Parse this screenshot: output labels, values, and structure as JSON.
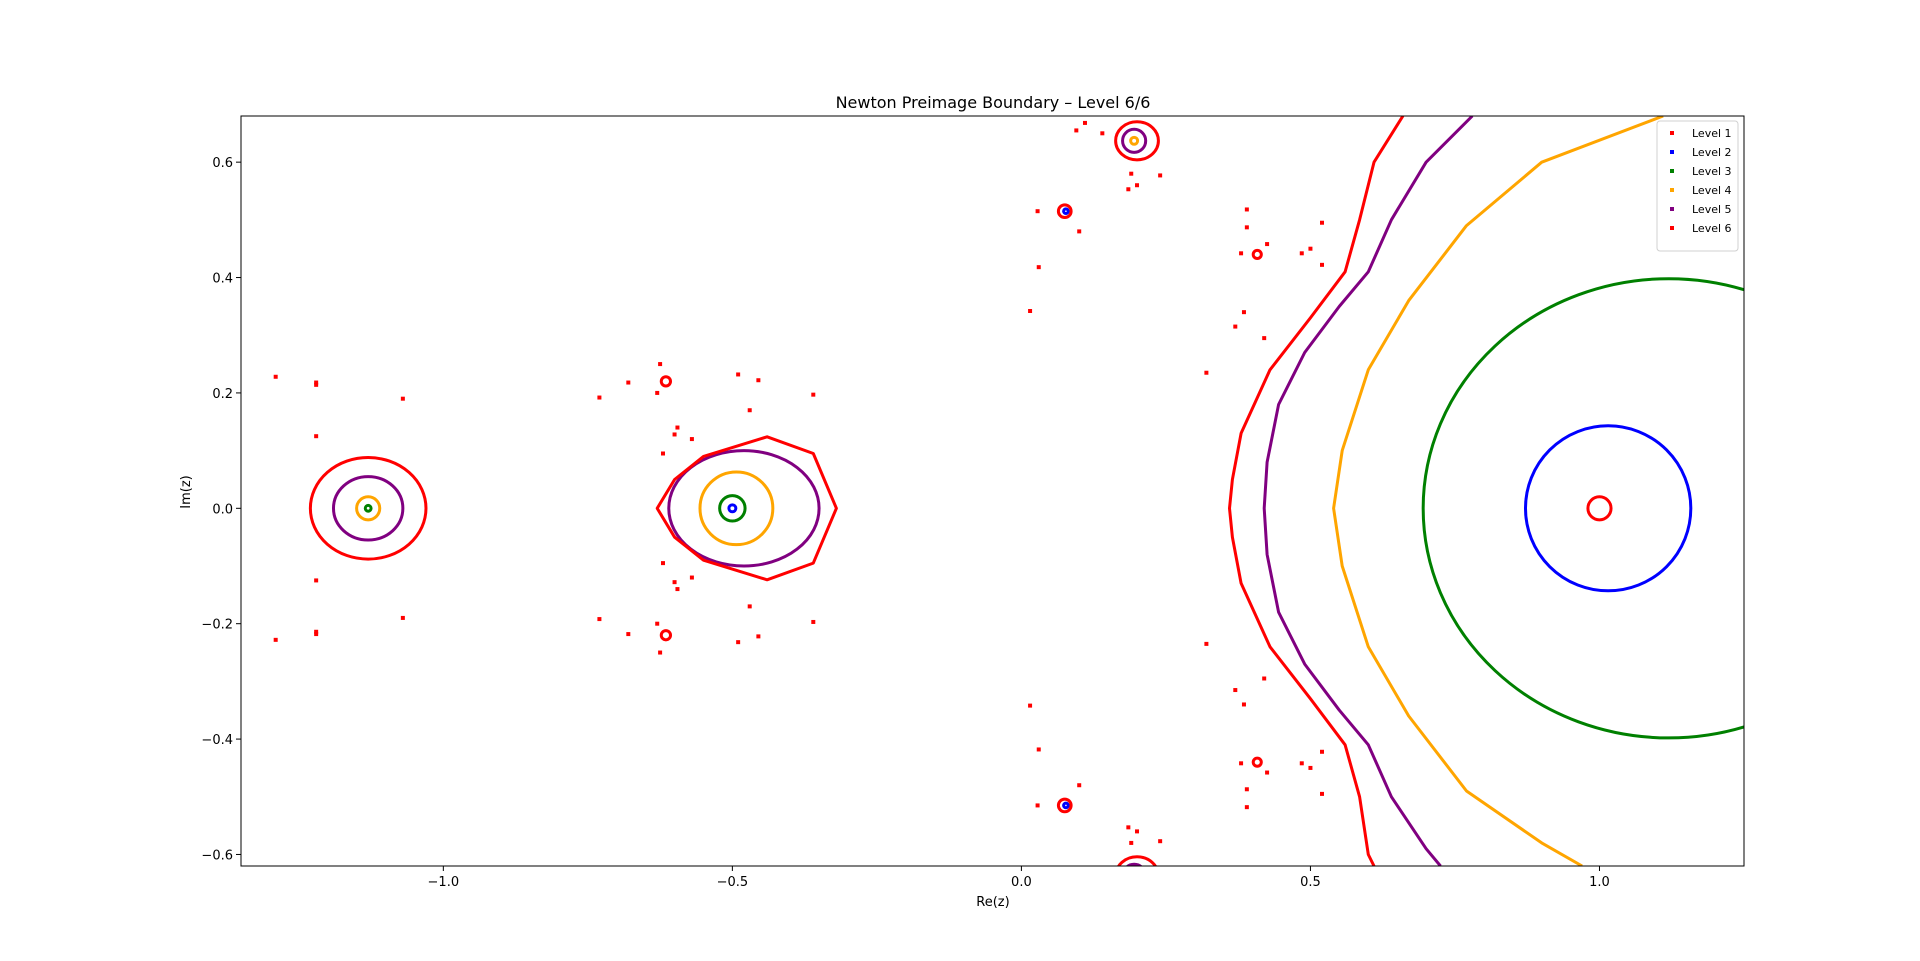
{
  "chart_data": {
    "type": "scatter",
    "title": "Newton Preimage Boundary – Level 6/6",
    "xlabel": "Re(z)",
    "ylabel": "Im(z)",
    "xlim": [
      -1.35,
      1.25
    ],
    "ylim": [
      -0.62,
      0.68
    ],
    "xticks": [
      -1.0,
      -0.5,
      0.0,
      0.5,
      1.0
    ],
    "xtick_labels": [
      "−1.0",
      "−0.5",
      "0.0",
      "0.5",
      "1.0"
    ],
    "yticks": [
      -0.6,
      -0.4,
      -0.2,
      0.0,
      0.2,
      0.4,
      0.6
    ],
    "ytick_labels": [
      "−0.6",
      "−0.4",
      "−0.2",
      "0.0",
      "0.2",
      "0.4",
      "0.6"
    ],
    "grid": false,
    "legend_position": "top-right",
    "series": [
      {
        "name": "Level 1",
        "color": "#ff0000",
        "curves": [
          {
            "kind": "ellipse",
            "center": [
              1.0,
              0.0
            ],
            "rx": 0.02,
            "ry": 0.02
          }
        ]
      },
      {
        "name": "Level 2",
        "color": "#0000ff",
        "curves": [
          {
            "kind": "ellipse",
            "center": [
              1.015,
              0.0
            ],
            "rx": 0.143,
            "ry": 0.143
          },
          {
            "kind": "ellipse",
            "center": [
              -0.5,
              0.0
            ],
            "rx": 0.006,
            "ry": 0.006
          },
          {
            "kind": "ellipse",
            "center": [
              0.077,
              0.515
            ],
            "rx": 0.004,
            "ry": 0.004
          },
          {
            "kind": "ellipse",
            "center": [
              0.077,
              -0.515
            ],
            "rx": 0.004,
            "ry": 0.004
          }
        ]
      },
      {
        "name": "Level 3",
        "color": "#008000",
        "curves": [
          {
            "kind": "ellipse",
            "center": [
              1.12,
              0.0
            ],
            "rx": 0.425,
            "ry": 0.398
          },
          {
            "kind": "ellipse",
            "center": [
              -0.5,
              0.0
            ],
            "rx": 0.022,
            "ry": 0.022
          },
          {
            "kind": "ellipse",
            "center": [
              -1.13,
              0.0
            ],
            "rx": 0.005,
            "ry": 0.005
          }
        ]
      },
      {
        "name": "Level 4",
        "color": "#ffa500",
        "curves": [
          {
            "kind": "path",
            "points": [
              [
                1.11,
                0.68
              ],
              [
                0.9,
                0.6
              ],
              [
                0.77,
                0.49
              ],
              [
                0.67,
                0.36
              ],
              [
                0.6,
                0.24
              ],
              [
                0.555,
                0.1
              ],
              [
                0.54,
                0.0
              ],
              [
                0.555,
                -0.1
              ],
              [
                0.6,
                -0.24
              ],
              [
                0.67,
                -0.36
              ],
              [
                0.77,
                -0.49
              ],
              [
                0.9,
                -0.58
              ],
              [
                0.97,
                -0.62
              ]
            ]
          },
          {
            "kind": "ellipse",
            "center": [
              -0.493,
              0.0
            ],
            "rx": 0.063,
            "ry": 0.063
          },
          {
            "kind": "ellipse",
            "center": [
              -1.13,
              0.0
            ],
            "rx": 0.02,
            "ry": 0.02
          },
          {
            "kind": "ellipse",
            "center": [
              0.195,
              0.637
            ],
            "rx": 0.006,
            "ry": 0.006
          }
        ]
      },
      {
        "name": "Level 5",
        "color": "#800080",
        "curves": [
          {
            "kind": "path",
            "points": [
              [
                0.78,
                0.68
              ],
              [
                0.7,
                0.6
              ],
              [
                0.64,
                0.5
              ],
              [
                0.6,
                0.41
              ],
              [
                0.55,
                0.35
              ],
              [
                0.49,
                0.27
              ],
              [
                0.445,
                0.18
              ],
              [
                0.425,
                0.08
              ],
              [
                0.42,
                0.0
              ],
              [
                0.425,
                -0.08
              ],
              [
                0.445,
                -0.18
              ],
              [
                0.49,
                -0.27
              ],
              [
                0.55,
                -0.35
              ],
              [
                0.6,
                -0.41
              ],
              [
                0.64,
                -0.5
              ],
              [
                0.7,
                -0.59
              ],
              [
                0.725,
                -0.62
              ]
            ]
          },
          {
            "kind": "ellipse",
            "center": [
              -0.48,
              0.0
            ],
            "rx": 0.13,
            "ry": 0.1
          },
          {
            "kind": "ellipse",
            "center": [
              -1.13,
              0.0
            ],
            "rx": 0.06,
            "ry": 0.055
          },
          {
            "kind": "ellipse",
            "center": [
              0.195,
              0.637
            ],
            "rx": 0.02,
            "ry": 0.02
          },
          {
            "kind": "ellipse",
            "center": [
              0.195,
              -0.637
            ],
            "rx": 0.02,
            "ry": 0.02
          }
        ]
      },
      {
        "name": "Level 6",
        "color": "#ff0000",
        "curves": [
          {
            "kind": "path",
            "points": [
              [
                0.66,
                0.68
              ],
              [
                0.61,
                0.6
              ],
              [
                0.585,
                0.5
              ],
              [
                0.56,
                0.41
              ],
              [
                0.5,
                0.33
              ],
              [
                0.43,
                0.24
              ],
              [
                0.38,
                0.13
              ],
              [
                0.365,
                0.05
              ],
              [
                0.36,
                0.0
              ],
              [
                0.365,
                -0.05
              ],
              [
                0.38,
                -0.13
              ],
              [
                0.43,
                -0.24
              ],
              [
                0.5,
                -0.33
              ],
              [
                0.56,
                -0.41
              ],
              [
                0.585,
                -0.5
              ],
              [
                0.6,
                -0.6
              ],
              [
                0.61,
                -0.62
              ]
            ]
          },
          {
            "kind": "path",
            "points": [
              [
                -0.55,
                0.09
              ],
              [
                -0.44,
                0.124
              ],
              [
                -0.36,
                0.095
              ],
              [
                -0.32,
                0.0
              ],
              [
                -0.36,
                -0.095
              ],
              [
                -0.44,
                -0.124
              ],
              [
                -0.55,
                -0.09
              ],
              [
                -0.6,
                -0.05
              ],
              [
                -0.63,
                0.0
              ],
              [
                -0.6,
                0.05
              ],
              [
                -0.55,
                0.09
              ]
            ],
            "closed": true
          },
          {
            "kind": "ellipse",
            "center": [
              -1.13,
              0.0
            ],
            "rx": 0.1,
            "ry": 0.088
          },
          {
            "kind": "ellipse",
            "center": [
              0.2,
              0.637
            ],
            "rx": 0.037,
            "ry": 0.033
          },
          {
            "kind": "ellipse",
            "center": [
              0.2,
              -0.637
            ],
            "rx": 0.037,
            "ry": 0.033
          },
          {
            "kind": "ellipse",
            "center": [
              0.075,
              0.515
            ],
            "rx": 0.011,
            "ry": 0.011
          },
          {
            "kind": "ellipse",
            "center": [
              0.075,
              -0.515
            ],
            "rx": 0.011,
            "ry": 0.011
          },
          {
            "kind": "ellipse",
            "center": [
              -0.615,
              0.22
            ],
            "rx": 0.008,
            "ry": 0.008
          },
          {
            "kind": "ellipse",
            "center": [
              -0.615,
              -0.22
            ],
            "rx": 0.008,
            "ry": 0.008
          },
          {
            "kind": "ellipse",
            "center": [
              0.408,
              0.44
            ],
            "rx": 0.007,
            "ry": 0.007
          },
          {
            "kind": "ellipse",
            "center": [
              0.408,
              -0.44
            ],
            "rx": 0.007,
            "ry": 0.007
          }
        ],
        "points": [
          [
            -1.22,
            0.218
          ],
          [
            -1.22,
            -0.218
          ],
          [
            -1.22,
            0.214
          ],
          [
            -1.22,
            -0.214
          ],
          [
            -1.29,
            0.228
          ],
          [
            -1.29,
            -0.228
          ],
          [
            -1.22,
            0.125
          ],
          [
            -1.22,
            -0.125
          ],
          [
            -1.07,
            0.19
          ],
          [
            -1.07,
            -0.19
          ],
          [
            -0.73,
            0.192
          ],
          [
            -0.73,
            -0.192
          ],
          [
            -0.68,
            0.218
          ],
          [
            -0.68,
            -0.218
          ],
          [
            -0.63,
            0.2
          ],
          [
            -0.63,
            -0.2
          ],
          [
            -0.625,
            0.25
          ],
          [
            -0.625,
            -0.25
          ],
          [
            -0.6,
            0.128
          ],
          [
            -0.6,
            -0.128
          ],
          [
            -0.595,
            0.14
          ],
          [
            -0.595,
            -0.14
          ],
          [
            -0.62,
            0.095
          ],
          [
            -0.62,
            -0.095
          ],
          [
            -0.57,
            0.12
          ],
          [
            -0.57,
            -0.12
          ],
          [
            -0.49,
            0.232
          ],
          [
            -0.49,
            -0.232
          ],
          [
            -0.455,
            0.222
          ],
          [
            -0.455,
            -0.222
          ],
          [
            -0.47,
            0.17
          ],
          [
            -0.47,
            -0.17
          ],
          [
            -0.36,
            0.197
          ],
          [
            -0.36,
            -0.197
          ],
          [
            0.015,
            0.342
          ],
          [
            0.015,
            -0.342
          ],
          [
            0.03,
            0.418
          ],
          [
            0.03,
            -0.418
          ],
          [
            0.028,
            0.515
          ],
          [
            0.028,
            -0.515
          ],
          [
            0.1,
            0.48
          ],
          [
            0.1,
            -0.48
          ],
          [
            0.11,
            0.668
          ],
          [
            0.11,
            -0.668
          ],
          [
            0.095,
            0.655
          ],
          [
            0.095,
            -0.655
          ],
          [
            0.14,
            0.65
          ],
          [
            0.14,
            -0.65
          ],
          [
            0.185,
            0.553
          ],
          [
            0.185,
            -0.553
          ],
          [
            0.2,
            0.56
          ],
          [
            0.2,
            -0.56
          ],
          [
            0.19,
            0.58
          ],
          [
            0.19,
            -0.58
          ],
          [
            0.24,
            0.577
          ],
          [
            0.24,
            -0.577
          ],
          [
            0.32,
            0.235
          ],
          [
            0.32,
            -0.235
          ],
          [
            0.37,
            0.315
          ],
          [
            0.37,
            -0.315
          ],
          [
            0.385,
            0.34
          ],
          [
            0.385,
            -0.34
          ],
          [
            0.38,
            0.442
          ],
          [
            0.38,
            -0.442
          ],
          [
            0.39,
            0.487
          ],
          [
            0.39,
            -0.487
          ],
          [
            0.39,
            0.518
          ],
          [
            0.39,
            -0.518
          ],
          [
            0.42,
            0.295
          ],
          [
            0.42,
            -0.295
          ],
          [
            0.425,
            0.458
          ],
          [
            0.425,
            -0.458
          ],
          [
            0.485,
            0.442
          ],
          [
            0.485,
            -0.442
          ],
          [
            0.5,
            0.45
          ],
          [
            0.5,
            -0.45
          ],
          [
            0.52,
            0.422
          ],
          [
            0.52,
            -0.422
          ],
          [
            0.52,
            0.495
          ],
          [
            0.52,
            -0.495
          ]
        ]
      }
    ]
  }
}
